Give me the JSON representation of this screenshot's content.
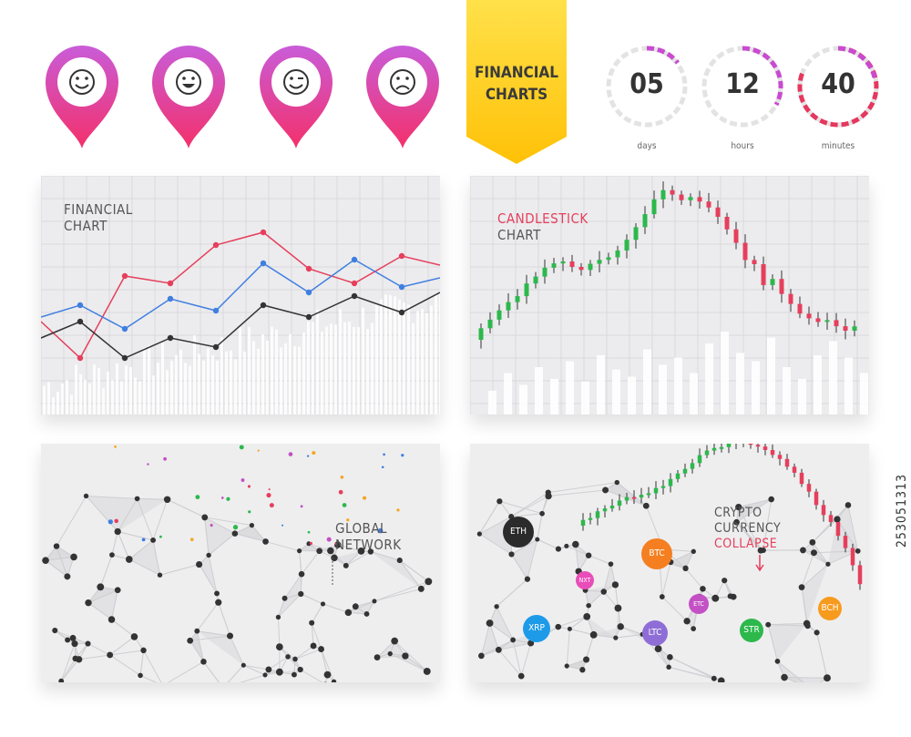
{
  "banner": {
    "line1": "FINANCIAL",
    "line2": "CHARTS",
    "color": "#FFD21F"
  },
  "pins": [
    {
      "icon": "smile-icon",
      "color_top": "#C95CD8",
      "color_bottom": "#F4306A"
    },
    {
      "icon": "laugh-icon",
      "color_top": "#C95CD8",
      "color_bottom": "#F4306A"
    },
    {
      "icon": "wink-icon",
      "color_top": "#C95CD8",
      "color_bottom": "#F4306A"
    },
    {
      "icon": "sad-icon",
      "color_top": "#C95CD8",
      "color_bottom": "#F4306A"
    }
  ],
  "countdown": [
    {
      "value": "05",
      "label": "days"
    },
    {
      "value": "12",
      "label": "hours"
    },
    {
      "value": "40",
      "label": "minutes"
    }
  ],
  "panels": {
    "financial": {
      "line1": "FINANCIAL",
      "line2": "CHART"
    },
    "candlestick": {
      "line1": "CANDLESTICK",
      "line2": "CHART",
      "accent": "#E63F5C"
    },
    "global": {
      "line1": "GLOBAL",
      "line2": "NETWORK"
    },
    "crypto": {
      "line1": "CRYPTO",
      "line2": "CURRENCY",
      "line3": "COLLAPSE"
    }
  },
  "coins": [
    {
      "symbol": "ETH",
      "color": "#2B2B2B"
    },
    {
      "symbol": "BTC",
      "color": "#F57F20"
    },
    {
      "symbol": "NXT",
      "color": "#E94DB8"
    },
    {
      "symbol": "ETC",
      "color": "#C350C4"
    },
    {
      "symbol": "XRP",
      "color": "#1E9BE8"
    },
    {
      "symbol": "LTC",
      "color": "#8E6ED6"
    },
    {
      "symbol": "STR",
      "color": "#2DB84C"
    },
    {
      "symbol": "BCH",
      "color": "#F79B1E"
    }
  ],
  "stock_id": "253051313",
  "colors": {
    "up": "#2DB84C",
    "down": "#E63F5C",
    "blue": "#3F7FE0",
    "red": "#E63F5C",
    "black": "#333333"
  }
}
